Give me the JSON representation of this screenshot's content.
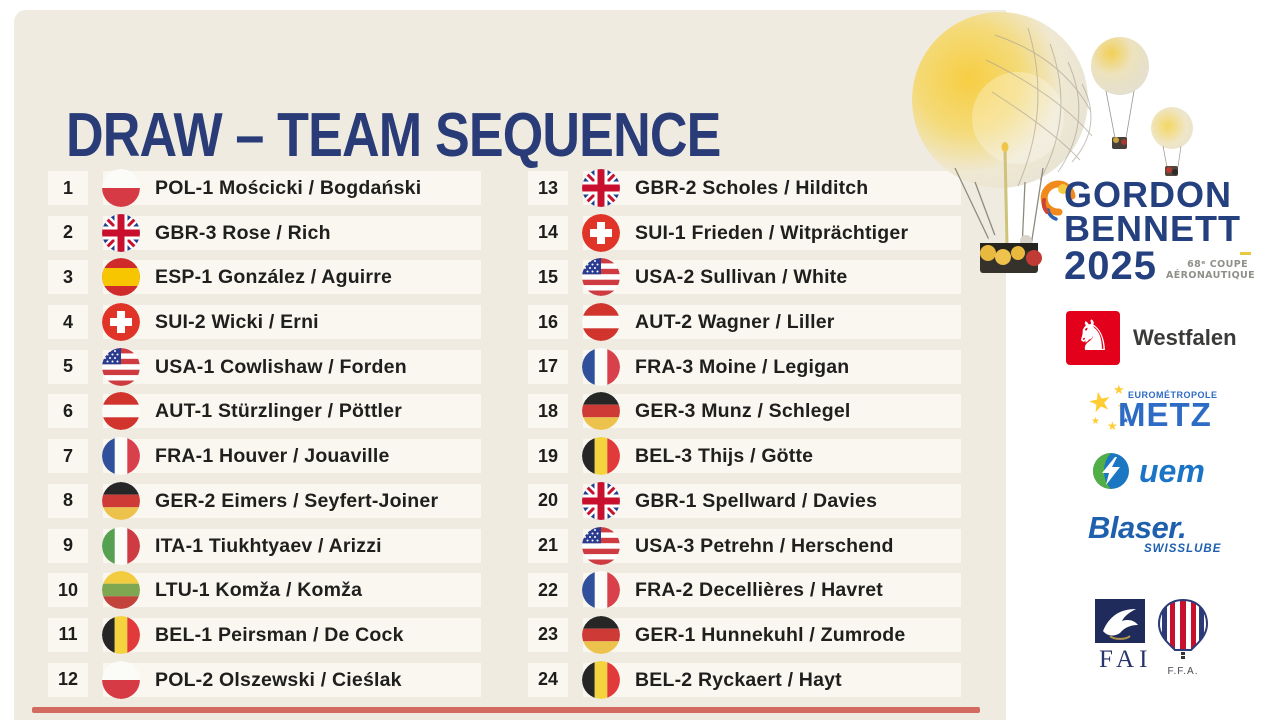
{
  "title": "DRAW – TEAM SEQUENCE",
  "teams": [
    {
      "seq": "1",
      "flag": "pol",
      "name": "POL-1 Mościcki / Bogdański"
    },
    {
      "seq": "2",
      "flag": "gbr",
      "name": "GBR-3 Rose / Rich"
    },
    {
      "seq": "3",
      "flag": "esp",
      "name": "ESP-1 González / Aguirre"
    },
    {
      "seq": "4",
      "flag": "sui",
      "name": "SUI-2 Wicki / Erni"
    },
    {
      "seq": "5",
      "flag": "usa",
      "name": "USA-1 Cowlishaw / Forden"
    },
    {
      "seq": "6",
      "flag": "aut",
      "name": "AUT-1 Stürzlinger / Pöttler"
    },
    {
      "seq": "7",
      "flag": "fra",
      "name": "FRA-1 Houver / Jouaville"
    },
    {
      "seq": "8",
      "flag": "ger",
      "name": "GER-2 Eimers / Seyfert-Joiner"
    },
    {
      "seq": "9",
      "flag": "ita",
      "name": "ITA-1 Tiukhtyaev / Arizzi"
    },
    {
      "seq": "10",
      "flag": "ltu",
      "name": "LTU-1 Komža / Komža"
    },
    {
      "seq": "11",
      "flag": "bel",
      "name": "BEL-1 Peirsman / De Cock"
    },
    {
      "seq": "12",
      "flag": "pol",
      "name": "POL-2 Olszewski / Cieślak"
    },
    {
      "seq": "13",
      "flag": "gbr",
      "name": "GBR-2 Scholes / Hilditch"
    },
    {
      "seq": "14",
      "flag": "sui",
      "name": "SUI-1 Frieden / Witprächtiger"
    },
    {
      "seq": "15",
      "flag": "usa",
      "name": "USA-2 Sullivan / White"
    },
    {
      "seq": "16",
      "flag": "aut",
      "name": "AUT-2 Wagner / Liller"
    },
    {
      "seq": "17",
      "flag": "fra",
      "name": "FRA-3 Moine / Legigan"
    },
    {
      "seq": "18",
      "flag": "ger",
      "name": "GER-3 Munz / Schlegel"
    },
    {
      "seq": "19",
      "flag": "bel",
      "name": "BEL-3 Thijs / Götte"
    },
    {
      "seq": "20",
      "flag": "gbr",
      "name": "GBR-1 Spellward / Davies"
    },
    {
      "seq": "21",
      "flag": "usa",
      "name": "USA-3 Petrehn / Herschend"
    },
    {
      "seq": "22",
      "flag": "fra",
      "name": "FRA-2 Decellières / Havret"
    },
    {
      "seq": "23",
      "flag": "ger",
      "name": "GER-1 Hunnekuhl / Zumrode"
    },
    {
      "seq": "24",
      "flag": "bel",
      "name": "BEL-2 Ryckaert / Hayt"
    }
  ],
  "event_logo": {
    "line1": "GORDON",
    "line2": "BENNETT",
    "line3": "2025",
    "subtitle_line1": "68ᵉ COUPE",
    "subtitle_line2": "AÉRONAUTIQUE"
  },
  "sponsors": {
    "westfalen": "Westfalen",
    "metz_top": "EUROMÉTROPOLE",
    "metz_main": "METZ",
    "uem": "uem",
    "blaser_main": "Blaser.",
    "blaser_sub": "SWISSLUBE",
    "fai": "FAI",
    "ffa": "F.F.A."
  },
  "colors": {
    "background_cream": "#EFEBE1",
    "row_strip": "#F9F7F0",
    "title_navy": "#2A3C78",
    "gordon_navy": "#25407F",
    "bottom_strip_red": "#CE5348",
    "westfalen_red": "#E2001A",
    "metz_blue": "#2D6BC4",
    "uem_blue": "#1B74C5",
    "blaser_blue": "#1E5FAE",
    "fai_navy": "#1E2B5B"
  }
}
